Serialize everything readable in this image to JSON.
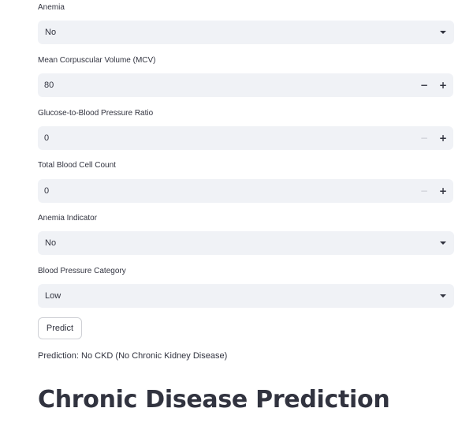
{
  "fields": {
    "anemia": {
      "label": "Anemia",
      "value": "No"
    },
    "mcv": {
      "label": "Mean Corpuscular Volume (MCV)",
      "value": "80",
      "minus": "−",
      "plus": "+"
    },
    "glucose_bp_ratio": {
      "label": "Glucose-to-Blood Pressure Ratio",
      "value": "0",
      "minus": "−",
      "plus": "+"
    },
    "total_blood_cell_count": {
      "label": "Total Blood Cell Count",
      "value": "0",
      "minus": "−",
      "plus": "+"
    },
    "anemia_indicator": {
      "label": "Anemia Indicator",
      "value": "No"
    },
    "bp_category": {
      "label": "Blood Pressure Category",
      "value": "Low"
    }
  },
  "predict_button": {
    "label": "Predict"
  },
  "prediction": {
    "text": "Prediction: No CKD (No Chronic Kidney Disease)"
  },
  "heading": {
    "title": "Chronic Disease Prediction"
  },
  "colors": {
    "input_bg": "#f0f2f6",
    "text": "#31333f",
    "disabled_step": "#c7c9d0"
  },
  "icons": {
    "select_arrow": "chevron-down-icon",
    "decrement": "minus-icon",
    "increment": "plus-icon"
  }
}
